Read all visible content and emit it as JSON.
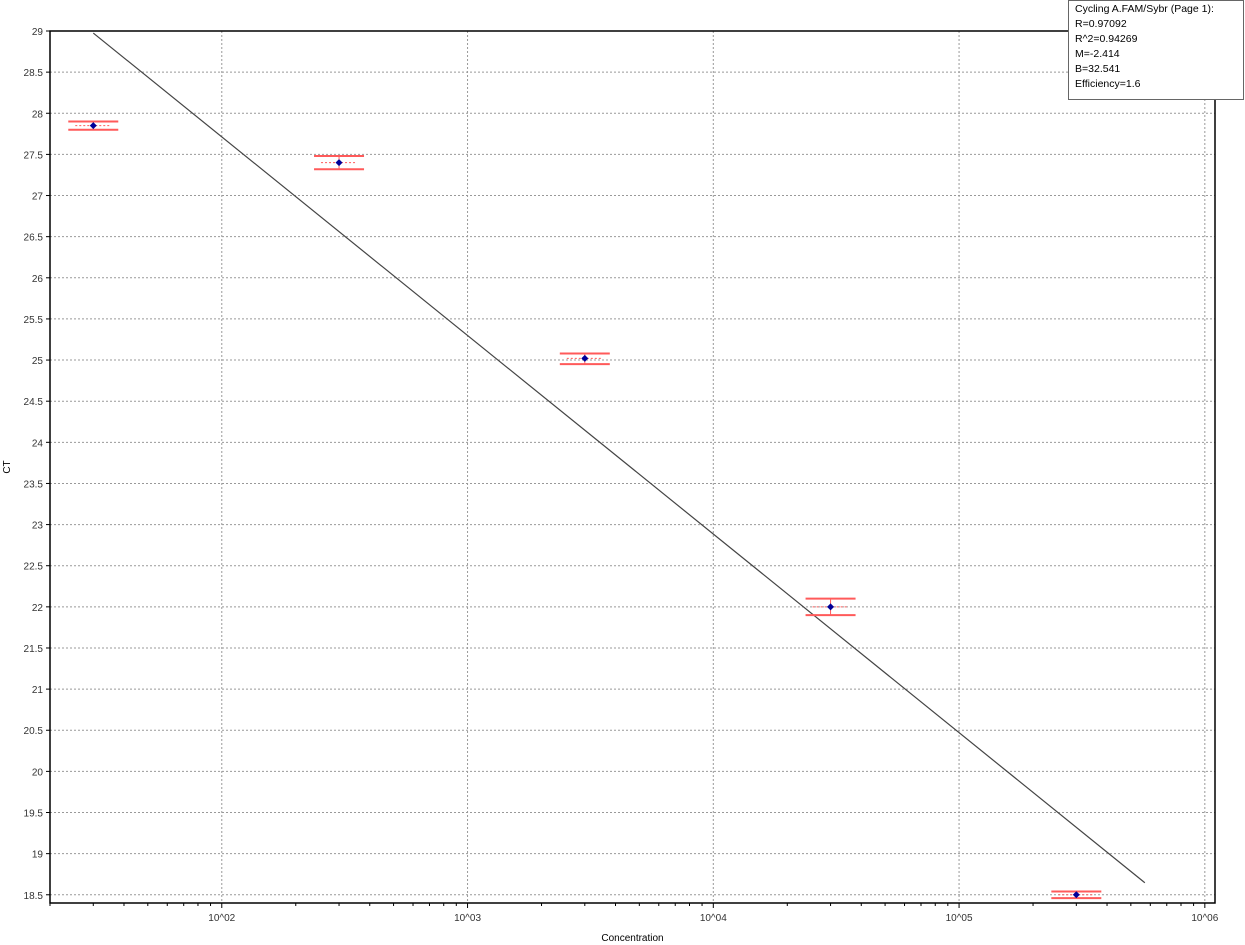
{
  "chart_data": {
    "type": "scatter",
    "xlabel": "Concentration",
    "ylabel": "CT",
    "x_scale": "log",
    "xlim": [
      20,
      1100000
    ],
    "ylim": [
      18.4,
      29.0
    ],
    "x_ticks": [
      {
        "value": 100,
        "label": "10^02"
      },
      {
        "value": 1000,
        "label": "10^03"
      },
      {
        "value": 10000,
        "label": "10^04"
      },
      {
        "value": 100000,
        "label": "10^05"
      },
      {
        "value": 1000000,
        "label": "10^06"
      }
    ],
    "y_ticks": [
      {
        "value": 18.5,
        "label": "18.5"
      },
      {
        "value": 19,
        "label": "19"
      },
      {
        "value": 19.5,
        "label": "19.5"
      },
      {
        "value": 20,
        "label": "20"
      },
      {
        "value": 20.5,
        "label": "20.5"
      },
      {
        "value": 21,
        "label": "21"
      },
      {
        "value": 21.5,
        "label": "21.5"
      },
      {
        "value": 22,
        "label": "22"
      },
      {
        "value": 22.5,
        "label": "22.5"
      },
      {
        "value": 23,
        "label": "23"
      },
      {
        "value": 23.5,
        "label": "23.5"
      },
      {
        "value": 24,
        "label": "24"
      },
      {
        "value": 24.5,
        "label": "24.5"
      },
      {
        "value": 25,
        "label": "25"
      },
      {
        "value": 25.5,
        "label": "25.5"
      },
      {
        "value": 26,
        "label": "26"
      },
      {
        "value": 26.5,
        "label": "26.5"
      },
      {
        "value": 27,
        "label": "27"
      },
      {
        "value": 27.5,
        "label": "27.5"
      },
      {
        "value": 28,
        "label": "28"
      },
      {
        "value": 28.5,
        "label": "28.5"
      },
      {
        "value": 29,
        "label": "29"
      }
    ],
    "grid": true,
    "points": [
      {
        "x": 30,
        "y": 27.85,
        "y_low": 27.8,
        "y_high": 27.9
      },
      {
        "x": 300,
        "y": 27.4,
        "y_low": 27.32,
        "y_high": 27.48
      },
      {
        "x": 3000,
        "y": 25.02,
        "y_low": 24.95,
        "y_high": 25.08
      },
      {
        "x": 30000,
        "y": 22.0,
        "y_low": 21.9,
        "y_high": 22.1
      },
      {
        "x": 300000,
        "y": 18.5,
        "y_low": 18.46,
        "y_high": 18.54
      }
    ],
    "fit_line": {
      "slope": -2.414,
      "intercept": 32.541,
      "x_start": 30,
      "x_end": 570000
    },
    "legend_position": "top-right",
    "legend": {
      "title": "Cycling A.FAM/Sybr (Page 1):",
      "lines": [
        "R=0.97092",
        "R^2=0.94269",
        "M=-2.414",
        "B=32.541",
        "Efficiency=1.6"
      ]
    },
    "colors": {
      "point": "#000099",
      "error_bar": "#ff5a5a",
      "fit_line": "#444444",
      "grid": "#999999",
      "axis": "#000000"
    }
  }
}
